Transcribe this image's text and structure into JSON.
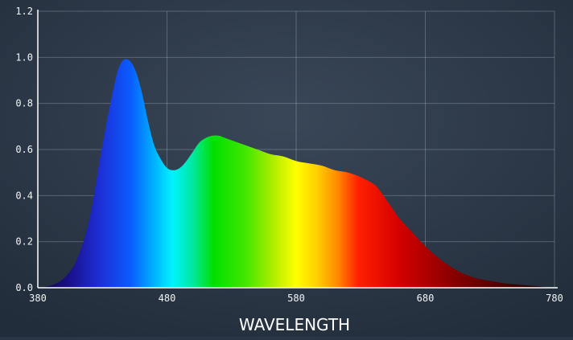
{
  "chart_data": {
    "type": "area",
    "title": "",
    "xlabel": "WAVELENGTH",
    "ylabel": "",
    "xlim": [
      380,
      780
    ],
    "ylim": [
      0,
      1.2
    ],
    "x_ticks": [
      380,
      480,
      580,
      680,
      780
    ],
    "y_ticks": [
      "0.0",
      "0.2",
      "0.4",
      "0.6",
      "0.8",
      "1.0",
      "1.2"
    ],
    "grid": true,
    "legend": "none",
    "fill": "visible-spectrum gradient by wavelength",
    "series": [
      {
        "x": [
          380,
          390,
          400,
          410,
          420,
          430,
          440,
          445,
          450,
          455,
          460,
          465,
          470,
          475,
          480,
          485,
          490,
          495,
          500,
          505,
          510,
          515,
          520,
          525,
          530,
          540,
          550,
          560,
          570,
          580,
          590,
          600,
          610,
          620,
          630,
          640,
          645,
          650,
          655,
          660,
          670,
          680,
          690,
          700,
          710,
          720,
          730,
          740,
          750,
          760,
          770,
          780
        ],
        "values": [
          0.0,
          0.01,
          0.04,
          0.12,
          0.3,
          0.62,
          0.9,
          0.98,
          0.99,
          0.95,
          0.86,
          0.73,
          0.62,
          0.56,
          0.52,
          0.51,
          0.52,
          0.55,
          0.59,
          0.63,
          0.65,
          0.66,
          0.66,
          0.65,
          0.64,
          0.62,
          0.6,
          0.58,
          0.57,
          0.55,
          0.54,
          0.53,
          0.51,
          0.5,
          0.48,
          0.45,
          0.42,
          0.38,
          0.34,
          0.3,
          0.24,
          0.18,
          0.13,
          0.09,
          0.06,
          0.04,
          0.03,
          0.02,
          0.015,
          0.01,
          0.005,
          0.0
        ]
      }
    ]
  }
}
